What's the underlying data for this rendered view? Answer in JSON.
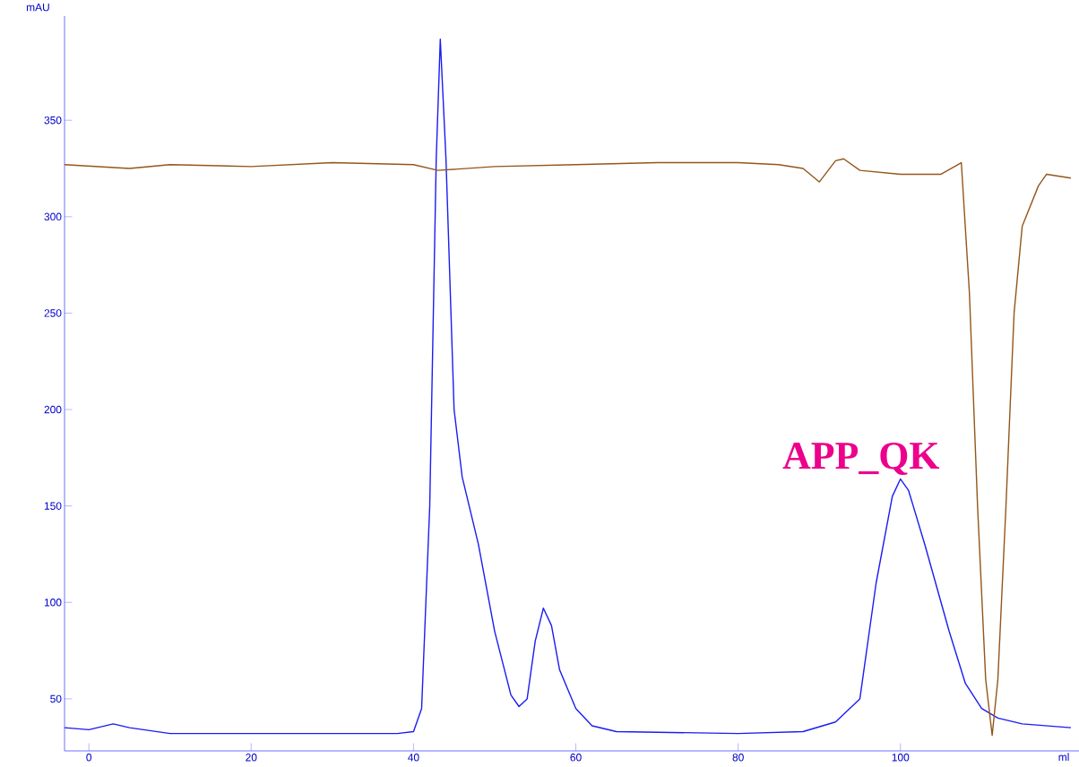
{
  "chart_data": {
    "type": "line",
    "xlabel": "ml",
    "ylabel": "mAU",
    "annotations": [
      {
        "text": "APP_QK",
        "x": 100,
        "y": 164
      }
    ],
    "xlim": [
      -3,
      122
    ],
    "ylim": [
      23,
      404
    ],
    "xticks": [
      0,
      20,
      40,
      60,
      80,
      100
    ],
    "yticks": [
      50,
      100,
      150,
      200,
      250,
      300,
      350
    ],
    "grid": false,
    "marker": "none",
    "line_style": "solid",
    "series": [
      {
        "color": "#1c1cf0",
        "x": [
          -3,
          0,
          3,
          5,
          10,
          20,
          38,
          40,
          41,
          42,
          42.8,
          43.3,
          44,
          45,
          46,
          48,
          50,
          52,
          53,
          54,
          55,
          56,
          57,
          58,
          60,
          62,
          65,
          80,
          88,
          92,
          95,
          97,
          99,
          100,
          101,
          103,
          106,
          108,
          110,
          112,
          115,
          121
        ],
        "values": [
          35,
          34,
          37,
          35,
          32,
          32,
          32,
          33,
          45,
          150,
          330,
          392,
          330,
          200,
          165,
          130,
          85,
          52,
          46,
          50,
          80,
          97,
          88,
          65,
          45,
          36,
          33,
          32,
          33,
          38,
          50,
          110,
          155,
          164,
          158,
          130,
          85,
          58,
          45,
          40,
          37,
          35
        ]
      },
      {
        "color": "#94561a",
        "x": [
          -3,
          5,
          10,
          20,
          30,
          40,
          43,
          50,
          60,
          70,
          80,
          85,
          88,
          90,
          92,
          93,
          95,
          100,
          105,
          107.5,
          108.5,
          109.5,
          110.5,
          111.3,
          112,
          113,
          114,
          115,
          117,
          118,
          121
        ],
        "values": [
          327,
          325,
          327,
          326,
          328,
          327,
          324,
          326,
          327,
          328,
          328,
          327,
          325,
          318,
          329,
          330,
          324,
          322,
          322,
          328,
          260,
          150,
          60,
          31,
          60,
          150,
          250,
          295,
          316,
          322,
          320
        ]
      }
    ]
  }
}
